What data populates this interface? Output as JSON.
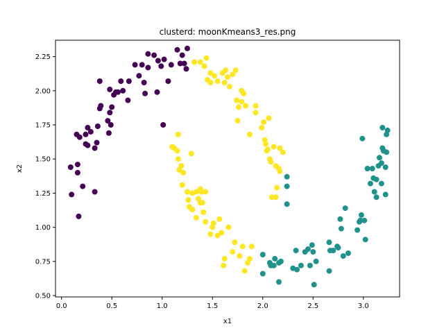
{
  "chart_data": {
    "type": "scatter",
    "title": "clusterd: moonKmeans3_res.png",
    "xlabel": "x1",
    "ylabel": "x2",
    "xlim": [
      -0.06,
      3.36
    ],
    "ylim": [
      0.49,
      2.37
    ],
    "xticks": [
      0.0,
      0.5,
      1.0,
      1.5,
      2.0,
      2.5,
      3.0
    ],
    "xtick_labels": [
      "0.0",
      "0.5",
      "1.0",
      "1.5",
      "2.0",
      "2.5",
      "3.0"
    ],
    "yticks": [
      0.5,
      0.75,
      1.0,
      1.25,
      1.5,
      1.75,
      2.0,
      2.25
    ],
    "ytick_labels": [
      "0.50",
      "0.75",
      "1.00",
      "1.25",
      "1.50",
      "1.75",
      "2.00",
      "2.25"
    ],
    "grid": false,
    "legend": "none",
    "series": [
      {
        "color": "#440154",
        "points": [
          [
            0.09,
            1.44
          ],
          [
            0.1,
            1.24
          ],
          [
            0.16,
            1.46
          ],
          [
            0.17,
            1.08
          ],
          [
            0.16,
            1.4
          ],
          [
            0.21,
            1.3
          ],
          [
            0.33,
            1.26
          ],
          [
            0.15,
            1.68
          ],
          [
            0.18,
            1.66
          ],
          [
            0.24,
            1.68
          ],
          [
            0.26,
            1.73
          ],
          [
            0.24,
            1.61
          ],
          [
            0.26,
            1.6
          ],
          [
            0.29,
            1.7
          ],
          [
            0.33,
            1.58
          ],
          [
            0.35,
            1.62
          ],
          [
            0.36,
            1.74
          ],
          [
            0.38,
            1.87
          ],
          [
            0.39,
            1.89
          ],
          [
            0.38,
            2.07
          ],
          [
            0.46,
            1.78
          ],
          [
            0.47,
            1.69
          ],
          [
            0.49,
            1.75
          ],
          [
            0.48,
            2.01
          ],
          [
            0.48,
            1.84
          ],
          [
            0.5,
            1.88
          ],
          [
            0.52,
            1.97
          ],
          [
            0.54,
            1.99
          ],
          [
            0.56,
            1.99
          ],
          [
            0.61,
            2.0
          ],
          [
            0.59,
            2.07
          ],
          [
            0.66,
            1.93
          ],
          [
            0.67,
            2.07
          ],
          [
            0.73,
            2.19
          ],
          [
            0.77,
            2.11
          ],
          [
            0.8,
            2.19
          ],
          [
            0.82,
            2.06
          ],
          [
            0.83,
            1.98
          ],
          [
            0.86,
            2.17
          ],
          [
            0.86,
            2.27
          ],
          [
            0.92,
            2.26
          ],
          [
            0.95,
            1.99
          ],
          [
            0.96,
            2.22
          ],
          [
            0.99,
            2.18
          ],
          [
            1.02,
            2.23
          ],
          [
            1.06,
            2.07
          ],
          [
            1.09,
            2.19
          ],
          [
            1.15,
            2.3
          ],
          [
            1.18,
            2.2
          ],
          [
            1.22,
            2.2
          ],
          [
            1.2,
            2.26
          ],
          [
            1.24,
            2.16
          ],
          [
            1.25,
            2.31
          ],
          [
            1.01,
            1.75
          ]
        ]
      },
      {
        "color": "#21918c",
        "points": [
          [
            2.0,
            0.8
          ],
          [
            2.0,
            0.66
          ],
          [
            2.07,
            0.74
          ],
          [
            2.08,
            0.72
          ],
          [
            2.11,
            0.72
          ],
          [
            2.12,
            0.77
          ],
          [
            2.16,
            0.74
          ],
          [
            2.16,
            0.6
          ],
          [
            2.18,
            0.75
          ],
          [
            2.24,
            1.37
          ],
          [
            2.24,
            1.3
          ],
          [
            2.24,
            1.17
          ],
          [
            2.3,
            0.7
          ],
          [
            2.33,
            0.83
          ],
          [
            2.34,
            0.69
          ],
          [
            2.38,
            0.72
          ],
          [
            2.42,
            0.82
          ],
          [
            2.45,
            0.84
          ],
          [
            2.47,
            0.72
          ],
          [
            2.5,
            0.82
          ],
          [
            2.49,
            0.87
          ],
          [
            2.53,
            0.75
          ],
          [
            2.51,
            0.58
          ],
          [
            2.66,
            0.68
          ],
          [
            2.66,
            0.89
          ],
          [
            2.67,
            0.83
          ],
          [
            2.7,
            0.83
          ],
          [
            2.74,
            0.86
          ],
          [
            2.75,
            0.85
          ],
          [
            2.77,
            1.06
          ],
          [
            2.78,
            0.99
          ],
          [
            2.8,
            0.79
          ],
          [
            2.82,
            1.14
          ],
          [
            2.85,
            0.81
          ],
          [
            2.94,
            0.98
          ],
          [
            2.96,
            1.04
          ],
          [
            2.97,
            1.05
          ],
          [
            2.98,
            1.09
          ],
          [
            2.99,
            1.65
          ],
          [
            3.01,
            1.05
          ],
          [
            3.02,
            0.91
          ],
          [
            3.04,
            1.43
          ],
          [
            3.07,
            1.32
          ],
          [
            3.09,
            1.43
          ],
          [
            3.1,
            1.36
          ],
          [
            3.11,
            1.26
          ],
          [
            3.13,
            1.22
          ],
          [
            3.13,
            1.35
          ],
          [
            3.15,
            1.45
          ],
          [
            3.16,
            1.51
          ],
          [
            3.18,
            1.47
          ],
          [
            3.18,
            1.32
          ],
          [
            3.19,
            1.58
          ],
          [
            3.19,
            1.73
          ],
          [
            3.2,
            1.56
          ],
          [
            3.22,
            1.24
          ],
          [
            3.22,
            1.44
          ],
          [
            3.23,
            1.55
          ],
          [
            3.24,
            1.71
          ],
          [
            3.23,
            1.68
          ]
        ]
      },
      {
        "color": "#fde725",
        "points": [
          [
            1.32,
            2.21
          ],
          [
            1.38,
            2.21
          ],
          [
            1.42,
            2.18
          ],
          [
            1.44,
            2.24
          ],
          [
            1.45,
            2.08
          ],
          [
            1.48,
            2.13
          ],
          [
            1.48,
            2.06
          ],
          [
            1.52,
            2.11
          ],
          [
            1.55,
            2.07
          ],
          [
            1.6,
            2.13
          ],
          [
            1.62,
            2.06
          ],
          [
            1.63,
            2.15
          ],
          [
            1.65,
            2.1
          ],
          [
            1.67,
            2.03
          ],
          [
            1.7,
            2.12
          ],
          [
            1.73,
            2.15
          ],
          [
            1.74,
            1.93
          ],
          [
            1.76,
            1.88
          ],
          [
            1.79,
            2.0
          ],
          [
            1.79,
            1.92
          ],
          [
            1.81,
            1.98
          ],
          [
            1.83,
            1.89
          ],
          [
            1.75,
            1.78
          ],
          [
            1.87,
            1.68
          ],
          [
            1.93,
            1.89
          ],
          [
            1.93,
            1.84
          ],
          [
            1.99,
            1.73
          ],
          [
            2.01,
            1.77
          ],
          [
            2.02,
            1.64
          ],
          [
            2.03,
            1.61
          ],
          [
            2.04,
            1.56
          ],
          [
            2.05,
            1.57
          ],
          [
            2.06,
            1.8
          ],
          [
            2.07,
            1.5
          ],
          [
            2.08,
            1.48
          ],
          [
            2.11,
            1.59
          ],
          [
            2.13,
            1.45
          ],
          [
            2.14,
            1.29
          ],
          [
            2.16,
            1.43
          ],
          [
            2.17,
            1.41
          ],
          [
            2.17,
            1.58
          ],
          [
            2.2,
            1.55
          ],
          [
            2.09,
            1.22
          ],
          [
            2.13,
            1.22
          ],
          [
            1.16,
            1.68
          ],
          [
            1.1,
            1.59
          ],
          [
            1.12,
            1.58
          ],
          [
            1.15,
            1.56
          ],
          [
            1.16,
            1.5
          ],
          [
            1.17,
            1.42
          ],
          [
            1.19,
            1.45
          ],
          [
            1.21,
            1.4
          ],
          [
            1.2,
            1.31
          ],
          [
            1.25,
            1.26
          ],
          [
            1.26,
            1.2
          ],
          [
            1.27,
            1.15
          ],
          [
            1.3,
            1.25
          ],
          [
            1.3,
            1.13
          ],
          [
            1.29,
            1.54
          ],
          [
            1.34,
            1.26
          ],
          [
            1.34,
            1.07
          ],
          [
            1.36,
            1.21
          ],
          [
            1.38,
            1.18
          ],
          [
            1.38,
            1.28
          ],
          [
            1.39,
            1.26
          ],
          [
            1.4,
            1.18
          ],
          [
            1.41,
            1.11
          ],
          [
            1.43,
            1.26
          ],
          [
            1.43,
            1.04
          ],
          [
            1.48,
            0.95
          ],
          [
            1.5,
            1.0
          ],
          [
            1.51,
            1.03
          ],
          [
            1.55,
            0.94
          ],
          [
            1.57,
            1.06
          ],
          [
            1.59,
            0.96
          ],
          [
            1.61,
            0.72
          ],
          [
            1.62,
            0.77
          ],
          [
            1.66,
            1.0
          ],
          [
            1.7,
            0.82
          ],
          [
            1.72,
            0.89
          ],
          [
            1.77,
            0.79
          ],
          [
            1.8,
            0.86
          ],
          [
            1.82,
            0.68
          ],
          [
            1.85,
            0.74
          ],
          [
            1.87,
            0.77
          ],
          [
            1.89,
            0.86
          ]
        ]
      }
    ]
  }
}
